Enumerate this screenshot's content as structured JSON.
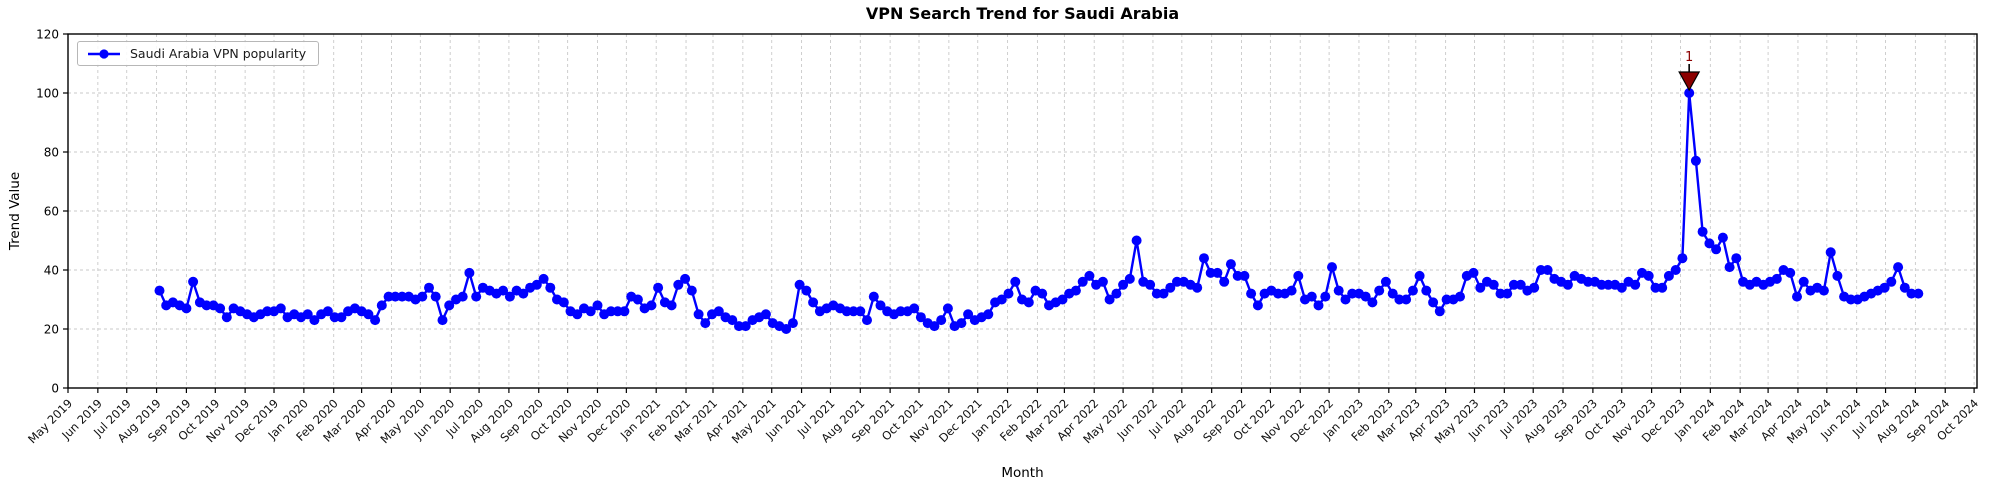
{
  "chart_data": {
    "type": "line",
    "title": "VPN Search Trend for Saudi Arabia",
    "xlabel": "Month",
    "ylabel": "Trend Value",
    "grid": true,
    "legend": {
      "position": "upper left",
      "entries": [
        {
          "label": "Saudi Arabia VPN popularity",
          "color": "#0000ff",
          "marker": "circle"
        }
      ]
    },
    "ylim": [
      0,
      120
    ],
    "yticks": [
      0,
      20,
      40,
      60,
      80,
      100,
      120
    ],
    "xlim_dates": [
      "2019-05-01",
      "2024-10-04"
    ],
    "xtick_labels": [
      "May 2019",
      "Jun 2019",
      "Jul 2019",
      "Aug 2019",
      "Sep 2019",
      "Oct 2019",
      "Nov 2019",
      "Dec 2019",
      "Jan 2020",
      "Feb 2020",
      "Mar 2020",
      "Apr 2020",
      "May 2020",
      "Jun 2020",
      "Jul 2020",
      "Aug 2020",
      "Sep 2020",
      "Oct 2020",
      "Nov 2020",
      "Dec 2020",
      "Jan 2021",
      "Feb 2021",
      "Mar 2021",
      "Apr 2021",
      "May 2021",
      "Jun 2021",
      "Jul 2021",
      "Aug 2021",
      "Sep 2021",
      "Oct 2021",
      "Nov 2021",
      "Dec 2021",
      "Jan 2022",
      "Feb 2022",
      "Mar 2022",
      "Apr 2022",
      "May 2022",
      "Jun 2022",
      "Jul 2022",
      "Aug 2022",
      "Sep 2022",
      "Oct 2022",
      "Nov 2022",
      "Dec 2022",
      "Jan 2023",
      "Feb 2023",
      "Mar 2023",
      "Apr 2023",
      "May 2023",
      "Jun 2023",
      "Jul 2023",
      "Aug 2023",
      "Sep 2023",
      "Oct 2023",
      "Nov 2023",
      "Dec 2023",
      "Jan 2024",
      "Feb 2024",
      "Mar 2024",
      "Apr 2024",
      "May 2024",
      "Jun 2024",
      "Jul 2024",
      "Aug 2024",
      "Sep 2024",
      "Oct 2024"
    ],
    "series": [
      {
        "name": "Saudi Arabia VPN popularity",
        "color": "#0000ff",
        "marker": "circle",
        "start_date": "2019-08-04",
        "interval_days": 7,
        "values": [
          33,
          28,
          29,
          28,
          27,
          36,
          29,
          28,
          28,
          27,
          24,
          27,
          26,
          25,
          24,
          25,
          26,
          26,
          27,
          24,
          25,
          24,
          25,
          23,
          25,
          26,
          24,
          24,
          26,
          27,
          26,
          25,
          23,
          28,
          31,
          31,
          31,
          31,
          30,
          31,
          34,
          31,
          23,
          28,
          30,
          31,
          39,
          31,
          34,
          33,
          32,
          33,
          31,
          33,
          32,
          34,
          35,
          37,
          34,
          30,
          29,
          26,
          25,
          27,
          26,
          28,
          25,
          26,
          26,
          26,
          31,
          30,
          27,
          28,
          34,
          29,
          28,
          35,
          37,
          33,
          25,
          22,
          25,
          26,
          24,
          23,
          21,
          21,
          23,
          24,
          25,
          22,
          21,
          20,
          22,
          35,
          33,
          29,
          26,
          27,
          28,
          27,
          26,
          26,
          26,
          23,
          31,
          28,
          26,
          25,
          26,
          26,
          27,
          24,
          22,
          21,
          23,
          27,
          21,
          22,
          25,
          23,
          24,
          25,
          29,
          30,
          32,
          36,
          30,
          29,
          33,
          32,
          28,
          29,
          30,
          32,
          33,
          36,
          38,
          35,
          36,
          30,
          32,
          35,
          37,
          50,
          36,
          35,
          32,
          32,
          34,
          36,
          36,
          35,
          34,
          44,
          39,
          39,
          36,
          42,
          38,
          38,
          32,
          28,
          32,
          33,
          32,
          32,
          33,
          38,
          30,
          31,
          28,
          31,
          41,
          33,
          30,
          32,
          32,
          31,
          29,
          33,
          36,
          32,
          30,
          30,
          33,
          38,
          33,
          29,
          26,
          30,
          30,
          31,
          38,
          39,
          34,
          36,
          35,
          32,
          32,
          35,
          35,
          33,
          34,
          40,
          40,
          37,
          36,
          35,
          38,
          37,
          36,
          36,
          35,
          35,
          35,
          34,
          36,
          35,
          39,
          38,
          34,
          34,
          38,
          40,
          44,
          100,
          77,
          53,
          49,
          47,
          51,
          41,
          44,
          36,
          35,
          36,
          35,
          36,
          37,
          40,
          39,
          31,
          36,
          33,
          34,
          33,
          46,
          38,
          31,
          30,
          30,
          31,
          32,
          33,
          34,
          36,
          41,
          34,
          32,
          32
        ]
      }
    ],
    "annotation": {
      "text": "1",
      "color": "#8b0000",
      "marker": "triangle-down",
      "marker_edge": "#000000",
      "date": "2023-12-10",
      "value": 100
    }
  }
}
